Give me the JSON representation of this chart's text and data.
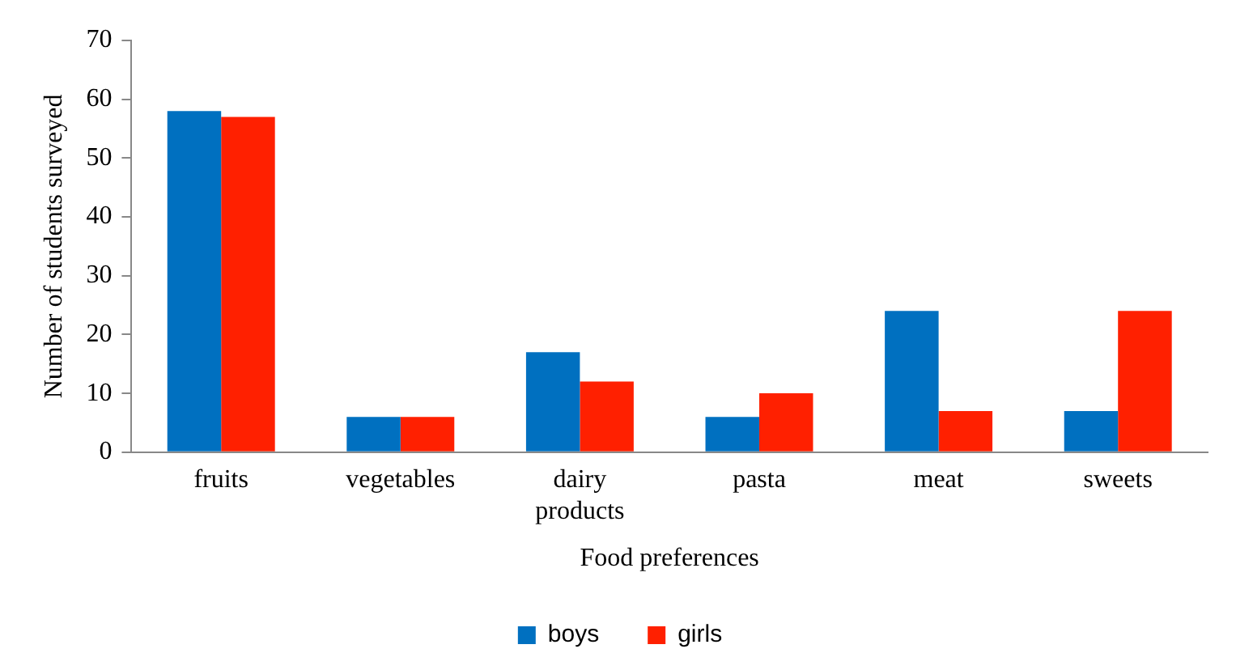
{
  "chart_data": {
    "type": "bar",
    "xlabel": "Food preferences",
    "ylabel": "Number of students surveyed",
    "categories": [
      "fruits",
      "vegetables",
      "dairy products",
      "pasta",
      "meat",
      "sweets"
    ],
    "series": [
      {
        "name": "boys",
        "color": "#0070c0",
        "values": [
          58,
          6,
          17,
          6,
          24,
          7
        ]
      },
      {
        "name": "girls",
        "color": "#ff2000",
        "values": [
          57,
          6,
          12,
          10,
          7,
          24
        ]
      }
    ],
    "ylim": [
      0,
      70
    ],
    "yticks": [
      0,
      10,
      20,
      30,
      40,
      50,
      60,
      70
    ],
    "grid": false,
    "legend": "bottom"
  }
}
